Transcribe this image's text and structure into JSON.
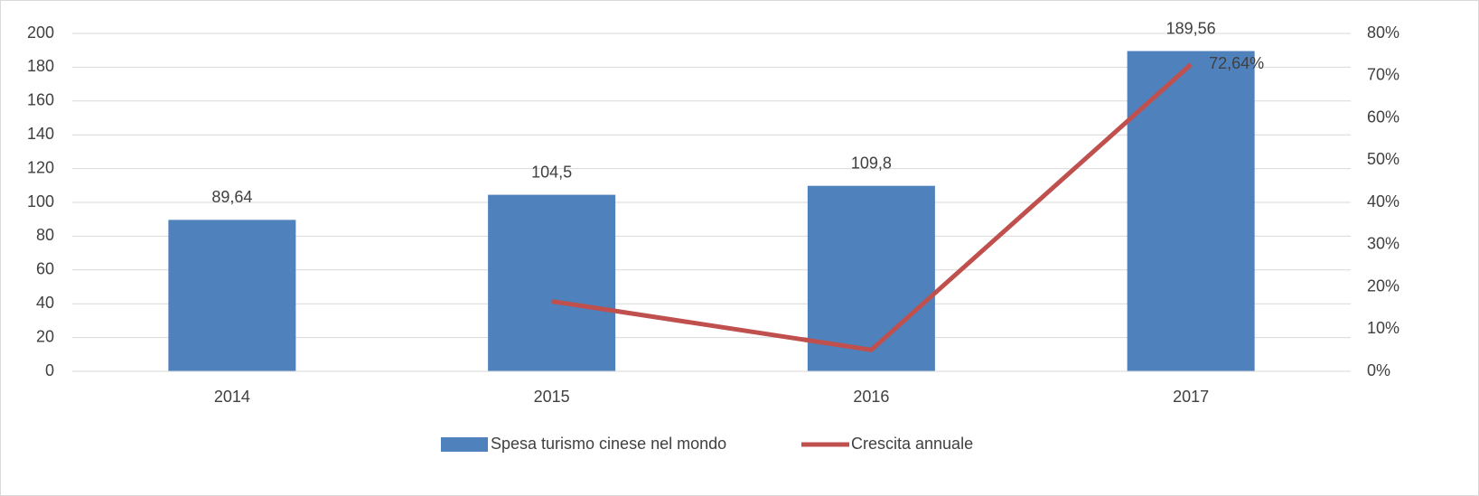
{
  "chart_data": {
    "type": "bar",
    "categories": [
      "2014",
      "2015",
      "2016",
      "2017"
    ],
    "series": [
      {
        "name": "Spesa turismo cinese nel mondo",
        "type": "bar",
        "color": "#4f81bd",
        "values": [
          89.64,
          104.5,
          109.8,
          189.56
        ],
        "value_labels": [
          "89,64",
          "104,5",
          "109,8",
          "189,56"
        ]
      },
      {
        "name": "Crescita annuale",
        "type": "line",
        "axis": "y2",
        "color": "#c0504d",
        "values": [
          null,
          16.58,
          5.07,
          72.64
        ],
        "value_labels": [
          null,
          null,
          null,
          "72,64%"
        ]
      }
    ],
    "ylim": [
      0,
      200
    ],
    "yticks": [
      0,
      20,
      40,
      60,
      80,
      100,
      120,
      140,
      160,
      180,
      200
    ],
    "y2lim": [
      0,
      80
    ],
    "y2ticks": [
      {
        "value": 0,
        "label": "0%"
      },
      {
        "value": 10,
        "label": "10%"
      },
      {
        "value": 20,
        "label": "20%"
      },
      {
        "value": 30,
        "label": "30%"
      },
      {
        "value": 40,
        "label": "40%"
      },
      {
        "value": 50,
        "label": "50%"
      },
      {
        "value": 60,
        "label": "60%"
      },
      {
        "value": 70,
        "label": "70%"
      },
      {
        "value": 80,
        "label": "80%"
      }
    ],
    "grid": true,
    "legend": "bottom"
  }
}
